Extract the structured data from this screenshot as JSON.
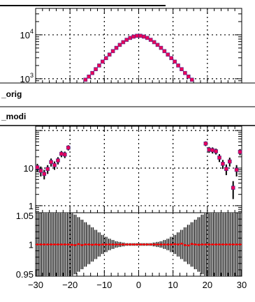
{
  "chart_data": [
    {
      "type": "scatter",
      "panel": "top",
      "yscale": "log",
      "ylim": [
        800,
        40000
      ],
      "xlim": [
        -30,
        30
      ],
      "grid": true,
      "ytick_labels": [
        {
          "base": "10",
          "exp": "4",
          "value": 10000
        },
        {
          "base": "10",
          "exp": "3",
          "value": 1000
        }
      ],
      "series": [
        {
          "color": "#e8005a",
          "x": [
            -15.5,
            -14.5,
            -13.5,
            -12.5,
            -11.5,
            -10.5,
            -9.5,
            -8.5,
            -7.5,
            -6.5,
            -5.5,
            -4.5,
            -3.5,
            -2.5,
            -1.5,
            -0.5,
            0.5,
            1.5,
            2.5,
            3.5,
            4.5,
            5.5,
            6.5,
            7.5,
            8.5,
            9.5,
            10.5,
            11.5,
            12.5,
            13.5,
            14.5,
            15.5
          ],
          "y": [
            950,
            1120,
            1350,
            1650,
            2000,
            2450,
            2950,
            3550,
            4250,
            5050,
            5900,
            6800,
            7700,
            8500,
            9100,
            9500,
            9500,
            9100,
            8500,
            7700,
            6800,
            5900,
            5050,
            4250,
            3550,
            2950,
            2450,
            2000,
            1650,
            1350,
            1120,
            950
          ]
        }
      ]
    },
    {
      "type": "scatter",
      "panel": "middle",
      "yscale": "log",
      "ylim": [
        0.65,
        130
      ],
      "xlim": [
        -30,
        30
      ],
      "grid": true,
      "legend": [
        "_orig",
        "_modi"
      ],
      "ytick_labels": [
        {
          "base": "10",
          "exp": "",
          "value": 10
        },
        {
          "base": "1",
          "exp": "",
          "value": 1
        }
      ],
      "series": [
        {
          "color": "#e8005a",
          "x": [
            -29.5,
            -28.5,
            -27.5,
            -26.5,
            -25.5,
            -24.5,
            -23.5,
            -22.5,
            -21.5,
            -20.5,
            19.5,
            20.5,
            21.5,
            22.5,
            23.5,
            24.5,
            25.5,
            26.5,
            27.5,
            28.5,
            29.5
          ],
          "y": [
            10.5,
            8.5,
            7,
            9.5,
            14.5,
            12,
            16,
            24,
            23,
            35,
            45,
            31,
            30,
            28,
            19,
            13,
            9.5,
            15,
            3,
            9,
            27
          ],
          "err": [
            2.5,
            2.5,
            2,
            2.5,
            3.5,
            3,
            3.5,
            4.5,
            4.5,
            5.5,
            6.5,
            5.5,
            5.5,
            5,
            4.5,
            3.5,
            3,
            4,
            1.5,
            3,
            5
          ]
        }
      ]
    },
    {
      "type": "scatter",
      "panel": "ratio",
      "ylim": [
        0.95,
        1.05
      ],
      "xlim": [
        -30,
        30
      ],
      "grid": true,
      "ytick_labels": [
        "1.05",
        "1",
        "0.95"
      ],
      "xtick_labels": [
        "−30",
        "−20",
        "−10",
        "0",
        "10",
        "20",
        "30"
      ],
      "xticks": [
        -30,
        -20,
        -10,
        0,
        10,
        20,
        30
      ],
      "series": [
        {
          "color": "#ff0000",
          "x": [
            -29.5,
            -28.5,
            -27.5,
            -26.5,
            -25.5,
            -24.5,
            -23.5,
            -22.5,
            -21.5,
            -20.5,
            -19.5,
            -18.5,
            -17.5,
            -16.5,
            -15.5,
            -14.5,
            -13.5,
            -12.5,
            -11.5,
            -10.5,
            -9.5,
            -8.5,
            -7.5,
            -6.5,
            -5.5,
            -4.5,
            -3.5,
            -2.5,
            -1.5,
            -0.5,
            0.5,
            1.5,
            2.5,
            3.5,
            4.5,
            5.5,
            6.5,
            7.5,
            8.5,
            9.5,
            10.5,
            11.5,
            12.5,
            13.5,
            14.5,
            15.5,
            16.5,
            17.5,
            18.5,
            19.5,
            20.5,
            21.5,
            22.5,
            23.5,
            24.5,
            25.5,
            26.5,
            27.5,
            28.5,
            29.5
          ],
          "y": [
            1.0,
            1.0,
            1.0,
            1.0,
            1.0,
            1.0,
            1.0,
            1.0,
            1.0,
            1.0,
            0.9995,
            0.999,
            1.0005,
            0.999,
            1.0,
            1.0,
            0.9995,
            1.0,
            0.9995,
            1.0,
            1.0,
            1.0,
            1.0,
            1.0,
            1.0,
            1.0,
            1.0,
            1.0,
            1.0,
            1.0,
            1.0,
            1.0,
            1.0,
            1.0,
            1.0,
            1.0,
            1.0,
            1.0,
            1.0,
            1.0,
            1.0005,
            1.0,
            1.0012,
            0.999,
            0.9985,
            1.0008,
            1.0,
            0.9995,
            1.0,
            1.0,
            1.0,
            1.0,
            1.0,
            1.0,
            1.0,
            1.0,
            1.0,
            1.0,
            1.0,
            1.0
          ],
          "err": [
            0.05,
            0.05,
            0.05,
            0.05,
            0.05,
            0.05,
            0.05,
            0.05,
            0.05,
            0.05,
            0.05,
            0.047,
            0.043,
            0.039,
            0.035,
            0.031,
            0.027,
            0.023,
            0.019,
            0.015,
            0.012,
            0.009,
            0.007,
            0.005,
            0.004,
            0.003,
            0.002,
            0.002,
            0.002,
            0.002,
            0.002,
            0.002,
            0.002,
            0.002,
            0.003,
            0.004,
            0.005,
            0.007,
            0.009,
            0.012,
            0.015,
            0.019,
            0.023,
            0.027,
            0.031,
            0.035,
            0.039,
            0.043,
            0.047,
            0.05,
            0.05,
            0.05,
            0.05,
            0.05,
            0.05,
            0.05,
            0.05,
            0.05,
            0.05,
            0.05
          ]
        }
      ]
    }
  ]
}
